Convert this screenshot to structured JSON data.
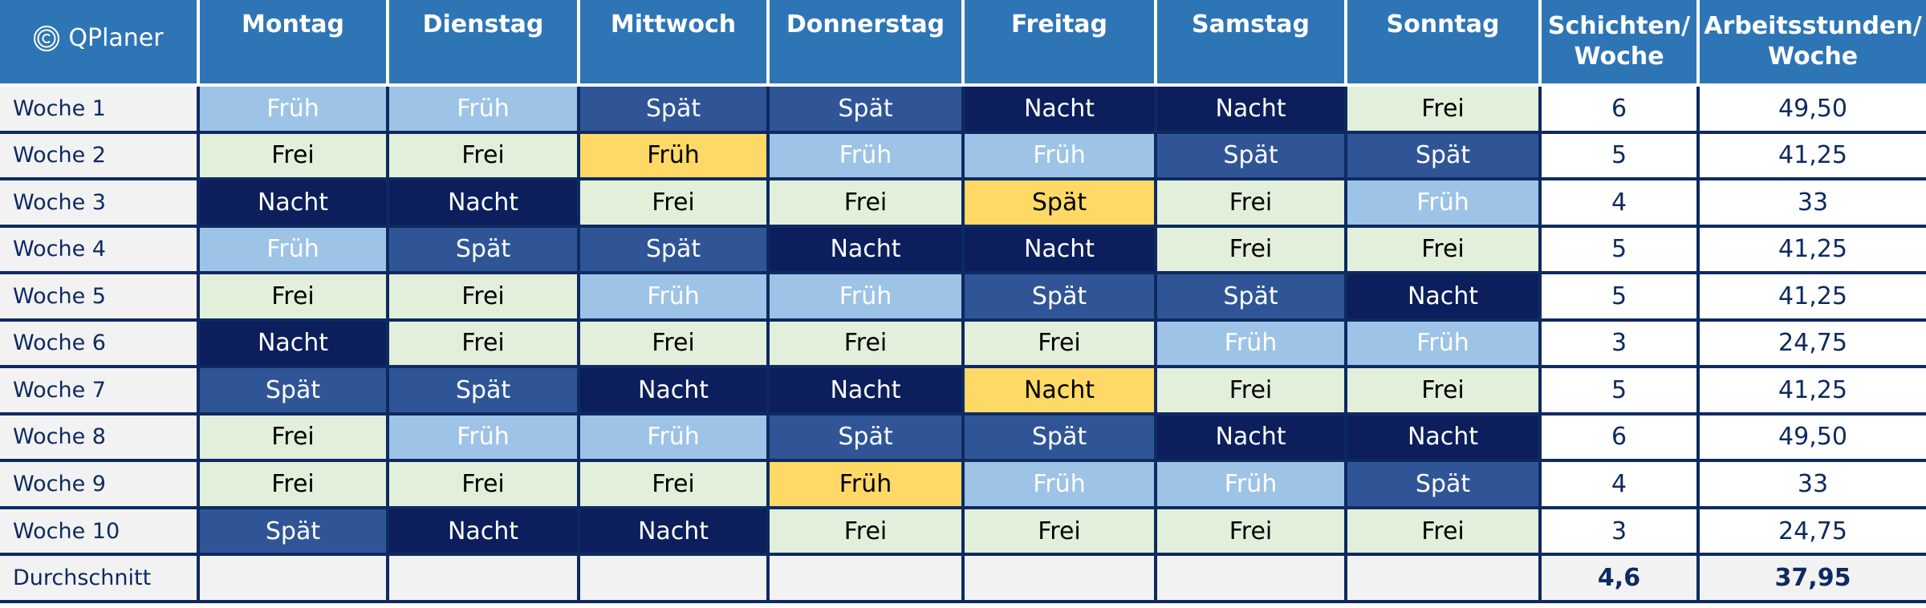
{
  "logo": {
    "text": "QPlaner"
  },
  "headers": {
    "days": [
      "Montag",
      "Dienstag",
      "Mittwoch",
      "Donnerstag",
      "Freitag",
      "Samstag",
      "Sonntag"
    ],
    "shifts_per_week": [
      "Schichten/",
      "Woche"
    ],
    "hours_per_week": [
      "Arbeitsstunden/",
      "Woche"
    ]
  },
  "weeks": [
    {
      "label": "Woche 1",
      "shifts": [
        "Früh",
        "Früh",
        "Spät",
        "Spät",
        "Nacht",
        "Nacht",
        "Frei"
      ],
      "count": "6",
      "hours": "49,50"
    },
    {
      "label": "Woche 2",
      "shifts": [
        "Frei",
        "Frei",
        "Früh",
        "Früh",
        "Früh",
        "Spät",
        "Spät"
      ],
      "count": "5",
      "hours": "41,25"
    },
    {
      "label": "Woche 3",
      "shifts": [
        "Nacht",
        "Nacht",
        "Frei",
        "Frei",
        "Spät",
        "Frei",
        "Früh"
      ],
      "count": "4",
      "hours": "33"
    },
    {
      "label": "Woche 4",
      "shifts": [
        "Früh",
        "Spät",
        "Spät",
        "Nacht",
        "Nacht",
        "Frei",
        "Frei"
      ],
      "count": "5",
      "hours": "41,25"
    },
    {
      "label": "Woche 5",
      "shifts": [
        "Frei",
        "Frei",
        "Früh",
        "Früh",
        "Spät",
        "Spät",
        "Nacht"
      ],
      "count": "5",
      "hours": "41,25"
    },
    {
      "label": "Woche 6",
      "shifts": [
        "Nacht",
        "Frei",
        "Frei",
        "Frei",
        "Frei",
        "Früh",
        "Früh"
      ],
      "count": "3",
      "hours": "24,75"
    },
    {
      "label": "Woche 7",
      "shifts": [
        "Spät",
        "Spät",
        "Nacht",
        "Nacht",
        "Nacht",
        "Frei",
        "Frei"
      ],
      "count": "5",
      "hours": "41,25"
    },
    {
      "label": "Woche 8",
      "shifts": [
        "Frei",
        "Früh",
        "Früh",
        "Spät",
        "Spät",
        "Nacht",
        "Nacht"
      ],
      "count": "6",
      "hours": "49,50"
    },
    {
      "label": "Woche 9",
      "shifts": [
        "Frei",
        "Frei",
        "Frei",
        "Früh",
        "Früh",
        "Früh",
        "Spät"
      ],
      "count": "4",
      "hours": "33"
    },
    {
      "label": "Woche 10",
      "shifts": [
        "Spät",
        "Nacht",
        "Nacht",
        "Frei",
        "Frei",
        "Frei",
        "Frei"
      ],
      "count": "3",
      "hours": "24,75"
    }
  ],
  "highlighted_cells": [
    [
      1,
      2
    ],
    [
      2,
      4
    ],
    [
      6,
      4
    ],
    [
      8,
      3
    ]
  ],
  "summary": {
    "label": "Durchschnitt",
    "avg_shifts": "4,6",
    "avg_hours": "37,95"
  },
  "colors": {
    "header_bg": "#2e75b6",
    "grid_line": "#0e2a60",
    "frueh": "#9dc3e6",
    "spaet": "#2f5597",
    "nacht": "#0c1f5c",
    "frei": "#e2efda",
    "highlight": "#ffd966",
    "label_bg": "#f2f2f2"
  }
}
